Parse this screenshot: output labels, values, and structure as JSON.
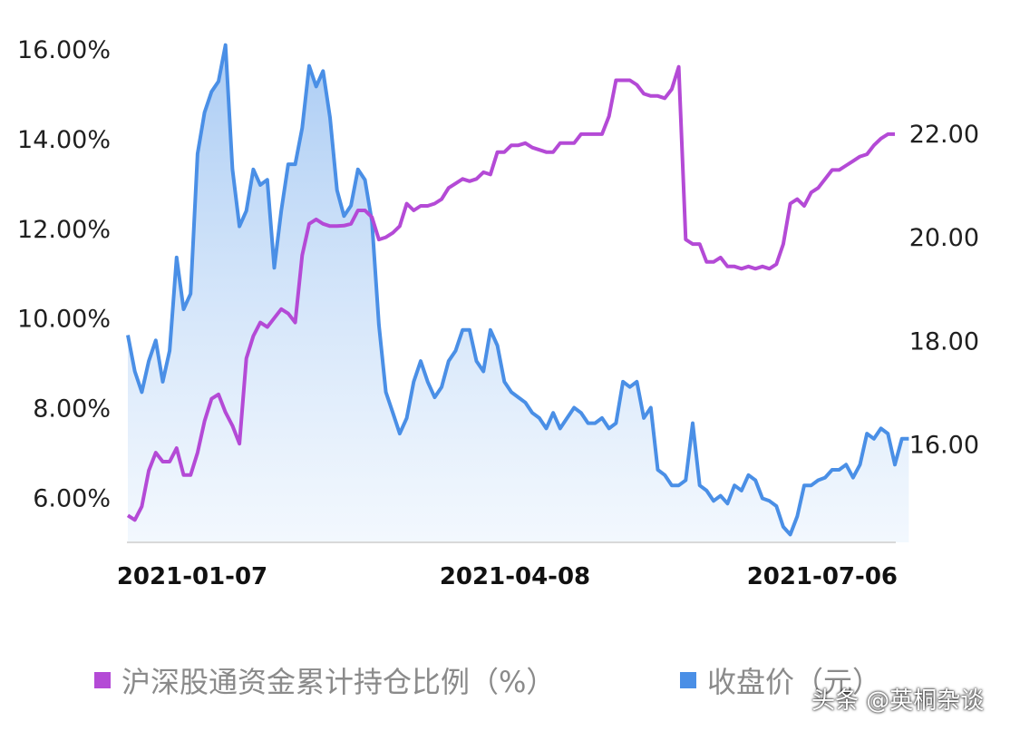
{
  "chart_data": {
    "type": "line",
    "x_ticks": [
      "2021-01-07",
      "2021-04-08",
      "2021-07-06"
    ],
    "y_left_ticks": [
      "6.00%",
      "8.00%",
      "10.00%",
      "12.00%",
      "14.00%",
      "16.00%"
    ],
    "y_right_ticks": [
      "16.00",
      "18.00",
      "20.00",
      "22.00"
    ],
    "ylim_left": [
      5.0,
      16.2
    ],
    "ylim_right": [
      14.1,
      23.8
    ],
    "grid": false,
    "legend_position": "bottom",
    "series": [
      {
        "name": "沪深股通资金累计持仓比例（%）",
        "axis": "left",
        "color": "#b44ad6",
        "values": [
          5.6,
          5.5,
          5.8,
          6.6,
          7.0,
          6.8,
          6.8,
          7.1,
          6.5,
          6.5,
          7.0,
          7.7,
          8.2,
          8.3,
          7.9,
          7.6,
          7.2,
          9.1,
          9.6,
          9.9,
          9.8,
          10.0,
          10.2,
          10.1,
          9.9,
          11.4,
          12.1,
          12.2,
          12.1,
          12.05,
          12.05,
          12.06,
          12.1,
          12.4,
          12.4,
          12.25,
          11.75,
          11.8,
          11.9,
          12.05,
          12.55,
          12.4,
          12.5,
          12.5,
          12.55,
          12.65,
          12.9,
          13.0,
          13.1,
          13.05,
          13.1,
          13.25,
          13.2,
          13.7,
          13.7,
          13.85,
          13.85,
          13.9,
          13.8,
          13.75,
          13.7,
          13.7,
          13.9,
          13.9,
          13.9,
          14.1,
          14.1,
          14.1,
          14.1,
          14.5,
          15.3,
          15.3,
          15.3,
          15.2,
          15.0,
          14.95,
          14.95,
          14.9,
          15.1,
          15.6,
          11.75,
          11.65,
          11.65,
          11.25,
          11.25,
          11.35,
          11.15,
          11.15,
          11.1,
          11.15,
          11.1,
          11.15,
          11.1,
          11.2,
          11.65,
          12.55,
          12.65,
          12.5,
          12.8,
          12.9,
          13.1,
          13.3,
          13.3,
          13.4,
          13.5,
          13.6,
          13.65,
          13.85,
          14.0,
          14.1,
          14.1
        ]
      },
      {
        "name": "收盘价（元）",
        "axis": "right",
        "color": "#4a8fe6",
        "values": [
          18.1,
          17.4,
          17.0,
          17.6,
          18.0,
          17.2,
          17.8,
          19.6,
          18.6,
          18.9,
          21.6,
          22.4,
          22.8,
          23.0,
          23.7,
          21.3,
          20.2,
          20.5,
          21.3,
          21.0,
          21.1,
          19.4,
          20.5,
          21.4,
          21.4,
          22.1,
          23.3,
          22.9,
          23.2,
          22.3,
          20.9,
          20.4,
          20.6,
          21.3,
          21.1,
          20.3,
          18.3,
          17.0,
          16.6,
          16.2,
          16.5,
          17.2,
          17.6,
          17.2,
          16.9,
          17.1,
          17.6,
          17.8,
          18.2,
          18.2,
          17.6,
          17.4,
          18.2,
          17.9,
          17.2,
          17.0,
          16.9,
          16.8,
          16.6,
          16.5,
          16.3,
          16.6,
          16.3,
          16.5,
          16.7,
          16.6,
          16.4,
          16.4,
          16.5,
          16.3,
          16.4,
          17.2,
          17.1,
          17.2,
          16.5,
          16.7,
          15.5,
          15.4,
          15.2,
          15.2,
          15.3,
          16.4,
          15.2,
          15.1,
          14.9,
          15.0,
          14.85,
          15.2,
          15.1,
          15.4,
          15.3,
          14.95,
          14.9,
          14.8,
          14.4,
          14.25,
          14.6,
          15.2,
          15.2,
          15.3,
          15.35,
          15.5,
          15.5,
          15.6,
          15.35,
          15.6,
          16.2,
          16.1,
          16.3,
          16.2,
          15.6,
          16.1,
          16.1
        ]
      }
    ]
  },
  "legend": [
    {
      "label": "沪深股通资金累计持仓比例（%）",
      "color": "#b44ad6"
    },
    {
      "label": "收盘价（元）",
      "color": "#4a8fe6"
    }
  ],
  "watermark": "头条 @英桐杂谈"
}
